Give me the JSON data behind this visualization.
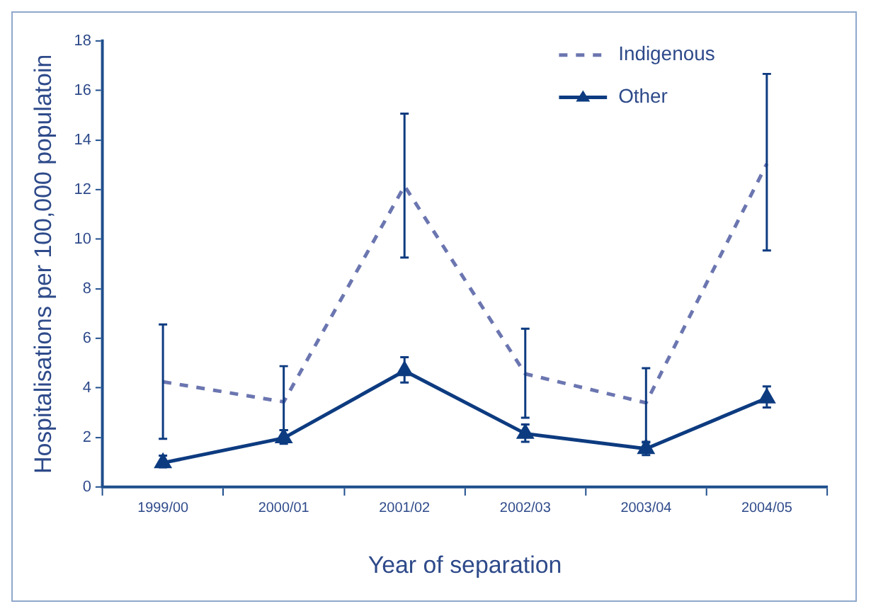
{
  "chart_data": {
    "type": "line",
    "xlabel": "Year of separation",
    "ylabel": "Hospitalisations per 100,000 populatoin",
    "categories": [
      "1999/00",
      "2000/01",
      "2001/02",
      "2002/03",
      "2003/04",
      "2004/05"
    ],
    "series": [
      {
        "name": "Indigenous",
        "color": "#6b76b0",
        "marker": "none",
        "line_style": "dashed",
        "values": [
          4.25,
          3.44,
          12.15,
          4.57,
          3.4,
          13.04
        ],
        "errors": [
          [
            1.95,
            6.56
          ],
          [
            2.3,
            4.88
          ],
          [
            9.26,
            15.07
          ],
          [
            2.8,
            6.39
          ],
          [
            1.8,
            4.8
          ],
          [
            9.55,
            16.67
          ]
        ]
      },
      {
        "name": "Other",
        "color": "#0d3b80",
        "marker": "triangle",
        "line_style": "solid",
        "values": [
          0.98,
          1.98,
          4.69,
          2.16,
          1.55,
          3.59
        ],
        "errors": [
          [
            0.8,
            1.27
          ],
          [
            1.75,
            2.3
          ],
          [
            4.22,
            5.24
          ],
          [
            1.83,
            2.53
          ],
          [
            1.29,
            1.83
          ],
          [
            3.21,
            4.06
          ]
        ]
      }
    ],
    "ylim": [
      0,
      18
    ],
    "yticks": [
      0,
      2,
      4,
      6,
      8,
      10,
      12,
      14,
      16,
      18
    ],
    "grid": false,
    "legend": "top right"
  }
}
